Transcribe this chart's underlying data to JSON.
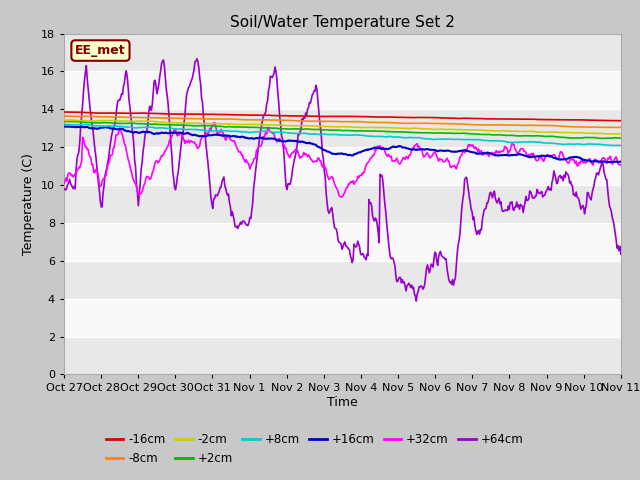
{
  "title": "Soil/Water Temperature Set 2",
  "ylabel": "Temperature (C)",
  "xlabel": "Time",
  "ylim": [
    0,
    18
  ],
  "yticks": [
    0,
    2,
    4,
    6,
    8,
    10,
    12,
    14,
    16,
    18
  ],
  "xtick_labels": [
    "Oct 27",
    "Oct 28",
    "Oct 29",
    "Oct 30",
    "Oct 31",
    "Nov 1",
    "Nov 2",
    "Nov 3",
    "Nov 4",
    "Nov 5",
    "Nov 6",
    "Nov 7",
    "Nov 8",
    "Nov 9",
    "Nov 10",
    "Nov 11"
  ],
  "fig_bg": "#c8c8c8",
  "plot_bg_light": "#f0f0f0",
  "plot_bg_dark": "#e0e0e0",
  "annotation_text": "EE_met",
  "annotation_box_color": "#ffffcc",
  "annotation_border_color": "#800000",
  "series": {
    "-16cm": {
      "color": "#dd0000",
      "lw": 1.2
    },
    "-8cm": {
      "color": "#ff8800",
      "lw": 1.2
    },
    "-2cm": {
      "color": "#cccc00",
      "lw": 1.2
    },
    "+2cm": {
      "color": "#00bb00",
      "lw": 1.2
    },
    "+8cm": {
      "color": "#00cccc",
      "lw": 1.2
    },
    "+16cm": {
      "color": "#0000cc",
      "lw": 1.5
    },
    "+32cm": {
      "color": "#ff00ff",
      "lw": 1.2
    },
    "+64cm": {
      "color": "#9900cc",
      "lw": 1.2
    }
  },
  "legend_order": [
    "-16cm",
    "-8cm",
    "-2cm",
    "+2cm",
    "+8cm",
    "+16cm",
    "+32cm",
    "+64cm"
  ]
}
